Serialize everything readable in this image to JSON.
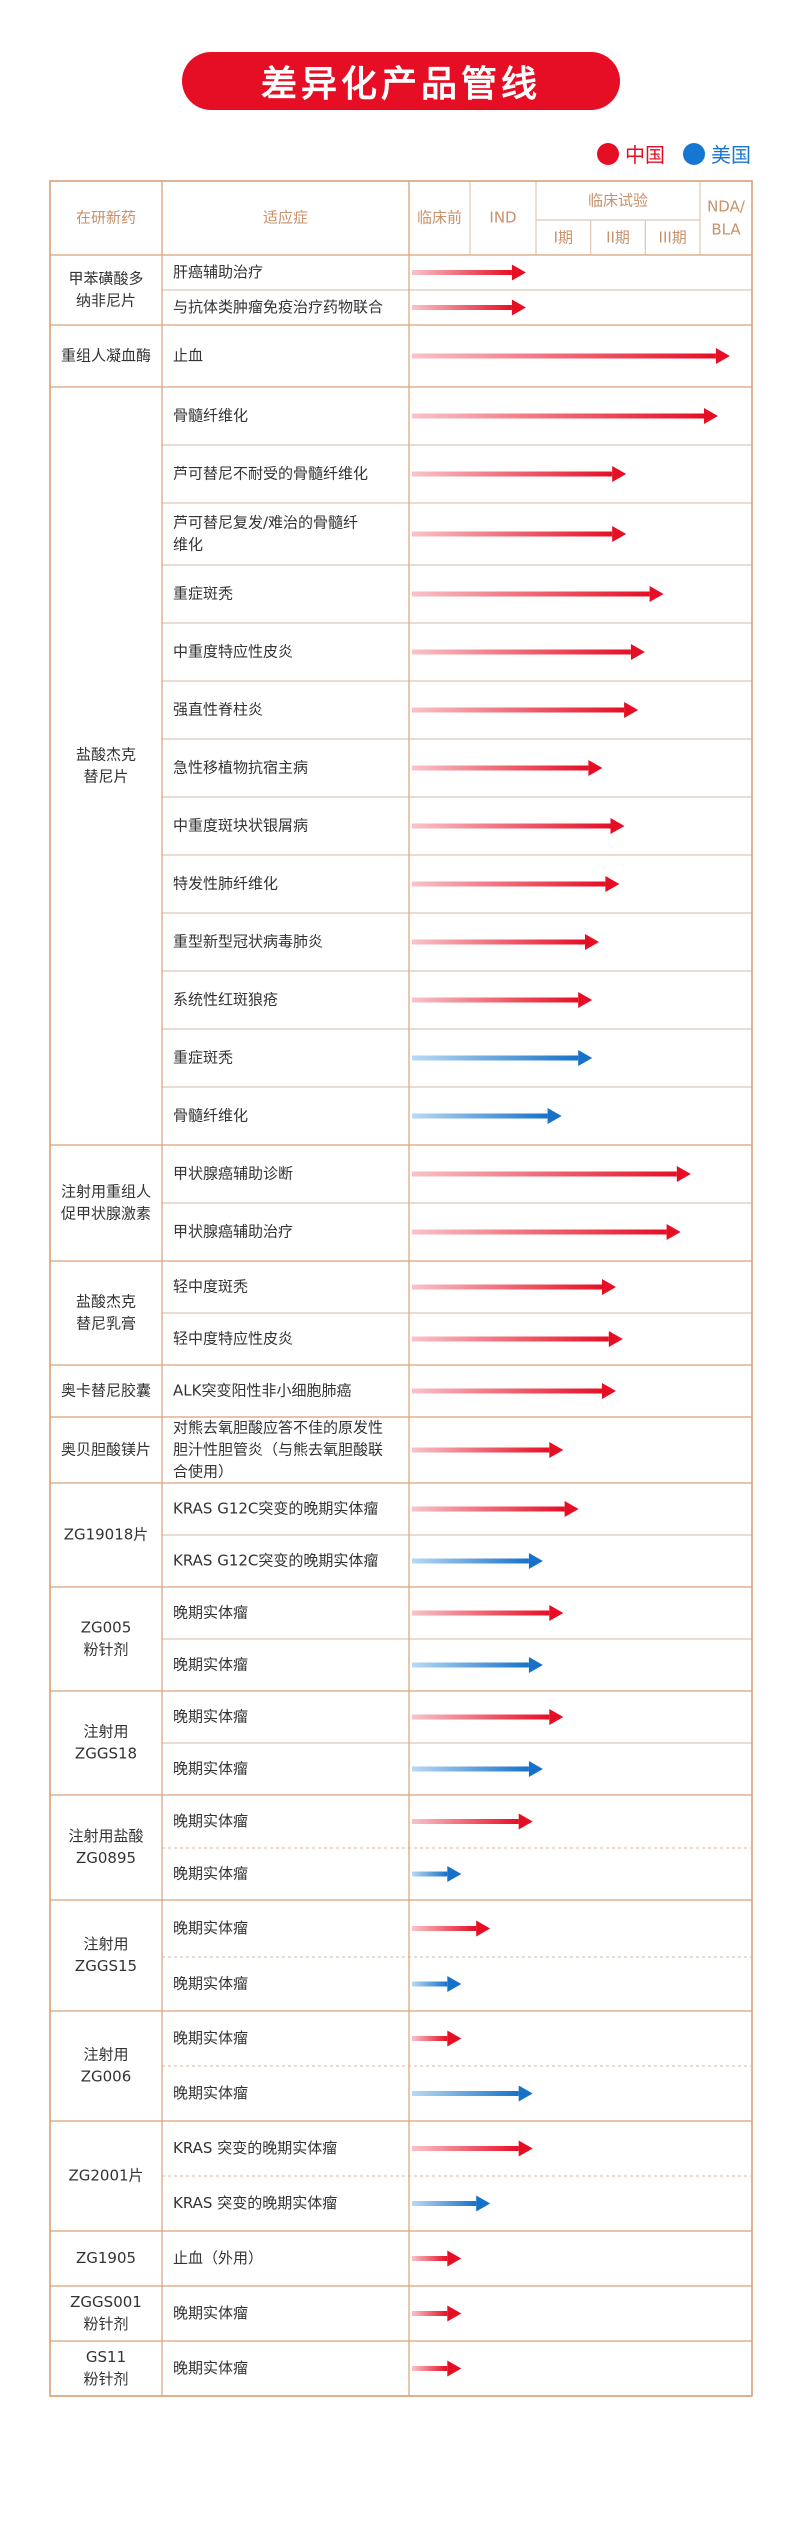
{
  "title": "差异化产品管线",
  "legend": {
    "china": {
      "label": "中国",
      "color": "#e60e24"
    },
    "usa": {
      "label": "美国",
      "color": "#1677d2"
    }
  },
  "header": {
    "drug": "在研新药",
    "indication": "适应症",
    "preclinical": "临床前",
    "ind": "IND",
    "clinical": "临床试验",
    "phase1": "I期",
    "phase2": "II期",
    "phase3": "III期",
    "nda_line1": "NDA/",
    "nda_line2": "BLA"
  },
  "groups": [
    {
      "drug": [
        "甲苯磺酸多",
        "纳非尼片"
      ],
      "rows": [
        {
          "indication": [
            "肝癌辅助治疗"
          ],
          "region": "china",
          "progress": 0.335
        },
        {
          "indication": [
            "与抗体类肿瘤免疫治疗药物联合"
          ],
          "region": "china",
          "progress": 0.335
        }
      ]
    },
    {
      "drug": [
        "重组人凝血酶"
      ],
      "rows": [
        {
          "indication": [
            "止血"
          ],
          "region": "china",
          "progress": 0.935
        }
      ]
    },
    {
      "drug": [
        "盐酸杰克",
        "替尼片"
      ],
      "rows": [
        {
          "indication": [
            "骨髓纤维化"
          ],
          "region": "china",
          "progress": 0.9
        },
        {
          "indication": [
            "芦可替尼不耐受的骨髓纤维化"
          ],
          "region": "china",
          "progress": 0.63
        },
        {
          "indication": [
            "芦可替尼复发/难治的骨髓纤",
            "维化"
          ],
          "region": "china",
          "progress": 0.63
        },
        {
          "indication": [
            "重症斑秃"
          ],
          "region": "china",
          "progress": 0.74
        },
        {
          "indication": [
            "中重度特应性皮炎"
          ],
          "region": "china",
          "progress": 0.685
        },
        {
          "indication": [
            "强直性脊柱炎"
          ],
          "region": "china",
          "progress": 0.665
        },
        {
          "indication": [
            "急性移植物抗宿主病"
          ],
          "region": "china",
          "progress": 0.56
        },
        {
          "indication": [
            "中重度斑块状银屑病"
          ],
          "region": "china",
          "progress": 0.625
        },
        {
          "indication": [
            "特发性肺纤维化"
          ],
          "region": "china",
          "progress": 0.61
        },
        {
          "indication": [
            "重型新型冠状病毒肺炎"
          ],
          "region": "china",
          "progress": 0.55
        },
        {
          "indication": [
            "系统性红斑狼疮"
          ],
          "region": "china",
          "progress": 0.53
        },
        {
          "indication": [
            "重症斑秃"
          ],
          "region": "usa",
          "progress": 0.53
        },
        {
          "indication": [
            "骨髓纤维化"
          ],
          "region": "usa",
          "progress": 0.44
        }
      ]
    },
    {
      "drug": [
        "注射用重组人",
        "促甲状腺激素"
      ],
      "rows": [
        {
          "indication": [
            "甲状腺癌辅助诊断"
          ],
          "region": "china",
          "progress": 0.82
        },
        {
          "indication": [
            "甲状腺癌辅助治疗"
          ],
          "region": "china",
          "progress": 0.79
        }
      ]
    },
    {
      "drug": [
        "盐酸杰克",
        "替尼乳膏"
      ],
      "rows": [
        {
          "indication": [
            "轻中度斑秃"
          ],
          "region": "china",
          "progress": 0.6
        },
        {
          "indication": [
            "轻中度特应性皮炎"
          ],
          "region": "china",
          "progress": 0.62
        }
      ]
    },
    {
      "drug": [
        "奥卡替尼胶囊"
      ],
      "rows": [
        {
          "indication": [
            "ALK突变阳性非小细胞肺癌"
          ],
          "region": "china",
          "progress": 0.6
        }
      ]
    },
    {
      "drug": [
        "奥贝胆酸镁片"
      ],
      "rows": [
        {
          "indication": [
            "对熊去氧胆酸应答不佳的原发性",
            "胆汁性胆管炎（与熊去氧胆酸联",
            "合使用）"
          ],
          "region": "china",
          "progress": 0.445
        }
      ]
    },
    {
      "drug": [
        "ZG19018片"
      ],
      "rows": [
        {
          "indication": [
            "KRAS G12C突变的晚期实体瘤"
          ],
          "region": "china",
          "progress": 0.49
        },
        {
          "indication": [
            "KRAS G12C突变的晚期实体瘤"
          ],
          "region": "usa",
          "progress": 0.385
        }
      ]
    },
    {
      "drug": [
        "ZG005",
        "粉针剂"
      ],
      "rows": [
        {
          "indication": [
            "晚期实体瘤"
          ],
          "region": "china",
          "progress": 0.445
        },
        {
          "indication": [
            "晚期实体瘤"
          ],
          "region": "usa",
          "progress": 0.385
        }
      ]
    },
    {
      "drug": [
        "注射用",
        "ZGGS18"
      ],
      "rows": [
        {
          "indication": [
            "晚期实体瘤"
          ],
          "region": "china",
          "progress": 0.445
        },
        {
          "indication": [
            "晚期实体瘤"
          ],
          "region": "usa",
          "progress": 0.385
        }
      ]
    },
    {
      "drug": [
        "注射用盐酸",
        "ZG0895"
      ],
      "rows": [
        {
          "indication": [
            "晚期实体瘤"
          ],
          "region": "china",
          "progress": 0.355
        },
        {
          "indication": [
            "晚期实体瘤"
          ],
          "region": "usa",
          "progress": 0.145
        }
      ]
    },
    {
      "drug": [
        "注射用",
        "ZGGS15"
      ],
      "rows": [
        {
          "indication": [
            "晚期实体瘤"
          ],
          "region": "china",
          "progress": 0.23
        },
        {
          "indication": [
            "晚期实体瘤"
          ],
          "region": "usa",
          "progress": 0.145
        }
      ]
    },
    {
      "drug": [
        "注射用",
        "ZG006"
      ],
      "rows": [
        {
          "indication": [
            "晚期实体瘤"
          ],
          "region": "china",
          "progress": 0.145
        },
        {
          "indication": [
            "晚期实体瘤"
          ],
          "region": "usa",
          "progress": 0.355
        }
      ]
    },
    {
      "drug": [
        "ZG2001片"
      ],
      "rows": [
        {
          "indication": [
            "KRAS 突变的晚期实体瘤"
          ],
          "region": "china",
          "progress": 0.355
        },
        {
          "indication": [
            "KRAS 突变的晚期实体瘤"
          ],
          "region": "usa",
          "progress": 0.23
        }
      ]
    },
    {
      "drug": [
        "ZG1905"
      ],
      "rows": [
        {
          "indication": [
            "止血（外用）"
          ],
          "region": "china",
          "progress": 0.145
        }
      ]
    },
    {
      "drug": [
        "ZGGS001",
        "粉针剂"
      ],
      "rows": [
        {
          "indication": [
            "晚期实体瘤"
          ],
          "region": "china",
          "progress": 0.145
        }
      ]
    },
    {
      "drug": [
        "GS11",
        "粉针剂"
      ],
      "rows": [
        {
          "indication": [
            "晚期实体瘤"
          ],
          "region": "china",
          "progress": 0.145
        }
      ]
    }
  ]
}
